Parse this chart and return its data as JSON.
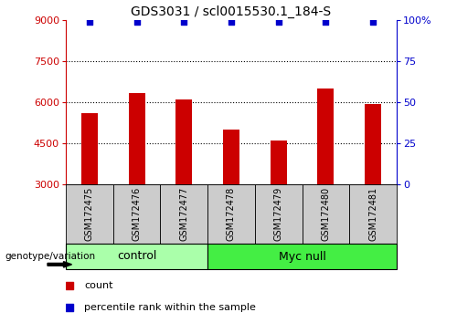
{
  "title": "GDS3031 / scl0015530.1_184-S",
  "samples": [
    "GSM172475",
    "GSM172476",
    "GSM172477",
    "GSM172478",
    "GSM172479",
    "GSM172480",
    "GSM172481"
  ],
  "counts": [
    5600,
    6350,
    6100,
    5000,
    4600,
    6500,
    5950
  ],
  "percentile_ranks": [
    99,
    99,
    99,
    99,
    99,
    99,
    99
  ],
  "bar_color": "#cc0000",
  "dot_color": "#0000cc",
  "y_min": 3000,
  "y_max": 9000,
  "y_ticks_left": [
    3000,
    4500,
    6000,
    7500,
    9000
  ],
  "y_ticks_right": [
    0,
    25,
    50,
    75,
    100
  ],
  "grid_values": [
    4500,
    6000,
    7500
  ],
  "groups": [
    {
      "label": "control",
      "indices": [
        0,
        1,
        2
      ],
      "color": "#aaffaa"
    },
    {
      "label": "Myc null",
      "indices": [
        3,
        4,
        5,
        6
      ],
      "color": "#44ee44"
    }
  ],
  "genotype_label": "genotype/variation",
  "legend_count_label": "count",
  "legend_percentile_label": "percentile rank within the sample",
  "bar_width": 0.35,
  "sample_area_bg": "#cccccc",
  "axis_left_color": "#cc0000",
  "axis_right_color": "#0000cc",
  "title_fontsize": 10,
  "tick_fontsize": 8,
  "sample_fontsize": 7,
  "group_fontsize": 9,
  "legend_fontsize": 8
}
